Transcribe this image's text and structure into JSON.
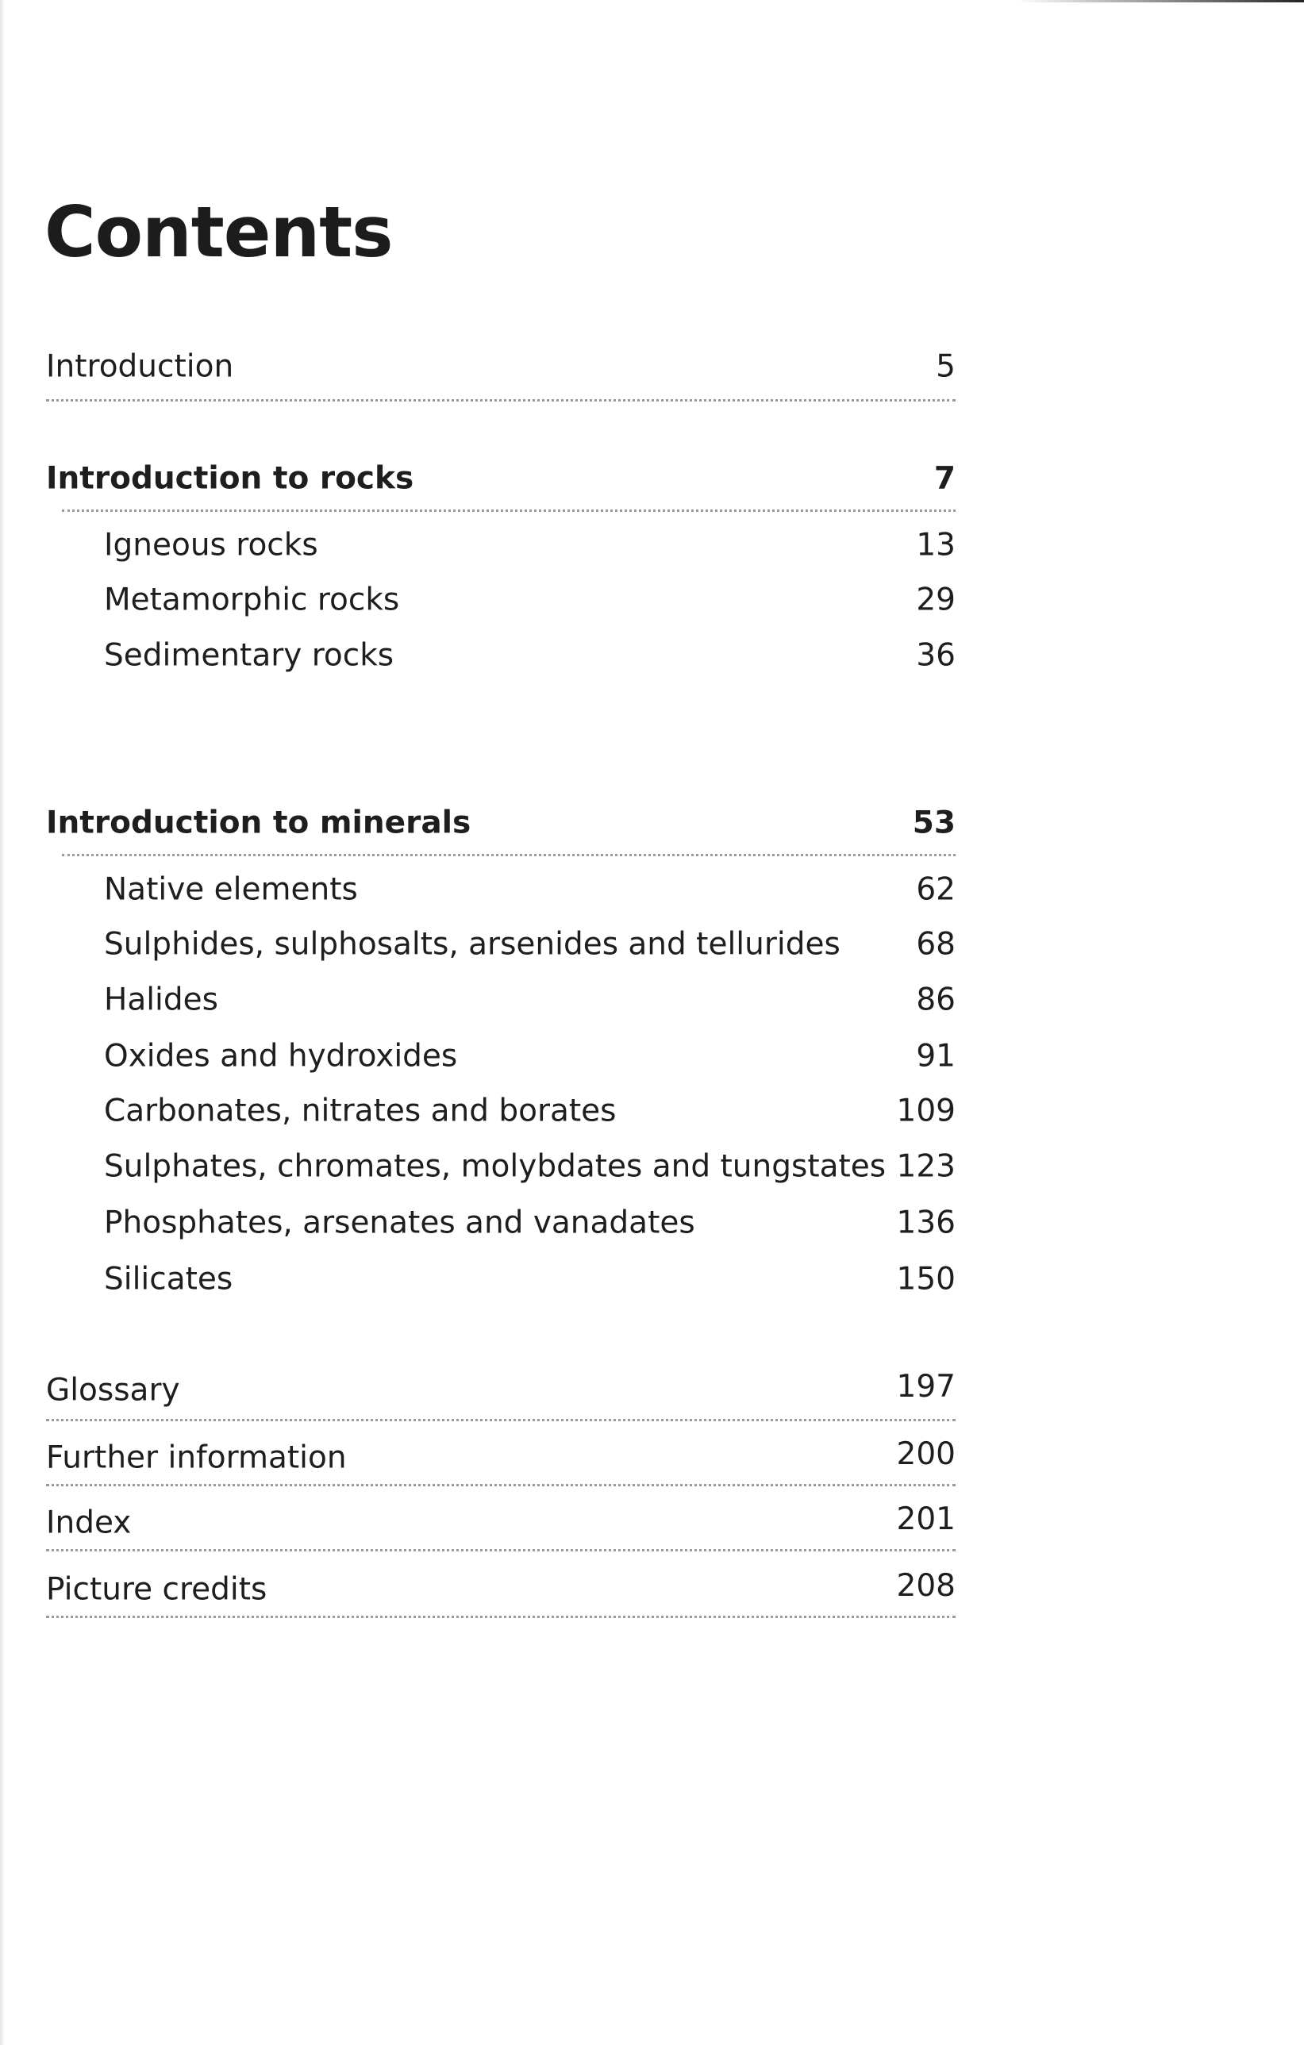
{
  "title": "Contents",
  "entries": [
    {
      "label": "Introduction",
      "page": "5",
      "level": 1,
      "bold": false,
      "dotted": true
    },
    {
      "label": "Introduction to rocks",
      "page": "7",
      "level": 1,
      "bold": true,
      "dotted": true
    },
    {
      "label": "Igneous rocks",
      "page": "13",
      "level": 2,
      "bold": false,
      "dotted": false
    },
    {
      "label": "Metamorphic rocks",
      "page": "29",
      "level": 2,
      "bold": false,
      "dotted": false
    },
    {
      "label": "Sedimentary rocks",
      "page": "36",
      "level": 2,
      "bold": false,
      "dotted": false
    },
    {
      "label": "Introduction to minerals",
      "page": "53",
      "level": 1,
      "bold": true,
      "dotted": true
    },
    {
      "label": "Native elements",
      "page": "62",
      "level": 2,
      "bold": false,
      "dotted": false
    },
    {
      "label": "Sulphides, sulphosalts, arsenides and tellurides",
      "page": "68",
      "level": 2,
      "bold": false,
      "dotted": false
    },
    {
      "label": "Halides",
      "page": "86",
      "level": 2,
      "bold": false,
      "dotted": false
    },
    {
      "label": "Oxides and hydroxides",
      "page": "91",
      "level": 2,
      "bold": false,
      "dotted": false
    },
    {
      "label": "Carbonates, nitrates and borates",
      "page": "109",
      "level": 2,
      "bold": false,
      "dotted": false
    },
    {
      "label": "Sulphates, chromates, molybdates and tungstates",
      "page": "123",
      "level": 2,
      "bold": false,
      "dotted": false
    },
    {
      "label": "Phosphates, arsenates and vanadates",
      "page": "136",
      "level": 2,
      "bold": false,
      "dotted": false
    },
    {
      "label": "Silicates",
      "page": "150",
      "level": 2,
      "bold": false,
      "dotted": false
    },
    {
      "label": "Glossary",
      "page": "197",
      "level": 1,
      "bold": false,
      "dotted": true
    },
    {
      "label": "Further information",
      "page": "200",
      "level": 1,
      "bold": false,
      "dotted": true
    },
    {
      "label": "Index",
      "page": "201",
      "level": 1,
      "bold": false,
      "dotted": true
    },
    {
      "label": "Picture credits",
      "page": "208",
      "level": 1,
      "bold": false,
      "dotted": true
    }
  ]
}
